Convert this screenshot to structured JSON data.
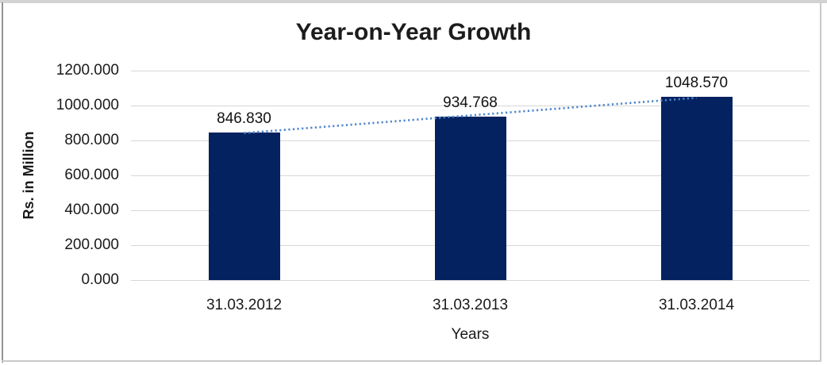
{
  "chart_data": {
    "type": "bar",
    "title": "Year-on-Year Growth",
    "xlabel": "Years",
    "ylabel": "Rs. in Million",
    "categories": [
      "31.03.2012",
      "31.03.2013",
      "31.03.2014"
    ],
    "values": [
      846.83,
      934.768,
      1048.57
    ],
    "value_labels": [
      "846.830",
      "934.768",
      "1048.570"
    ],
    "ylim": [
      0,
      1200
    ],
    "y_ticks": [
      0,
      200,
      400,
      600,
      800,
      1000,
      1200
    ],
    "y_tick_labels": [
      "0.000",
      "200.000",
      "400.000",
      "600.000",
      "800.000",
      "1000.000",
      "1200.000"
    ],
    "grid": true,
    "legend": false,
    "trendline": {
      "type": "linear",
      "style": "dotted"
    },
    "colors": {
      "bar": "#052260",
      "trendline": "#4e86cc",
      "gridline": "#d7d7d7",
      "text": "#1a1a1a",
      "background": "#ffffff"
    }
  }
}
